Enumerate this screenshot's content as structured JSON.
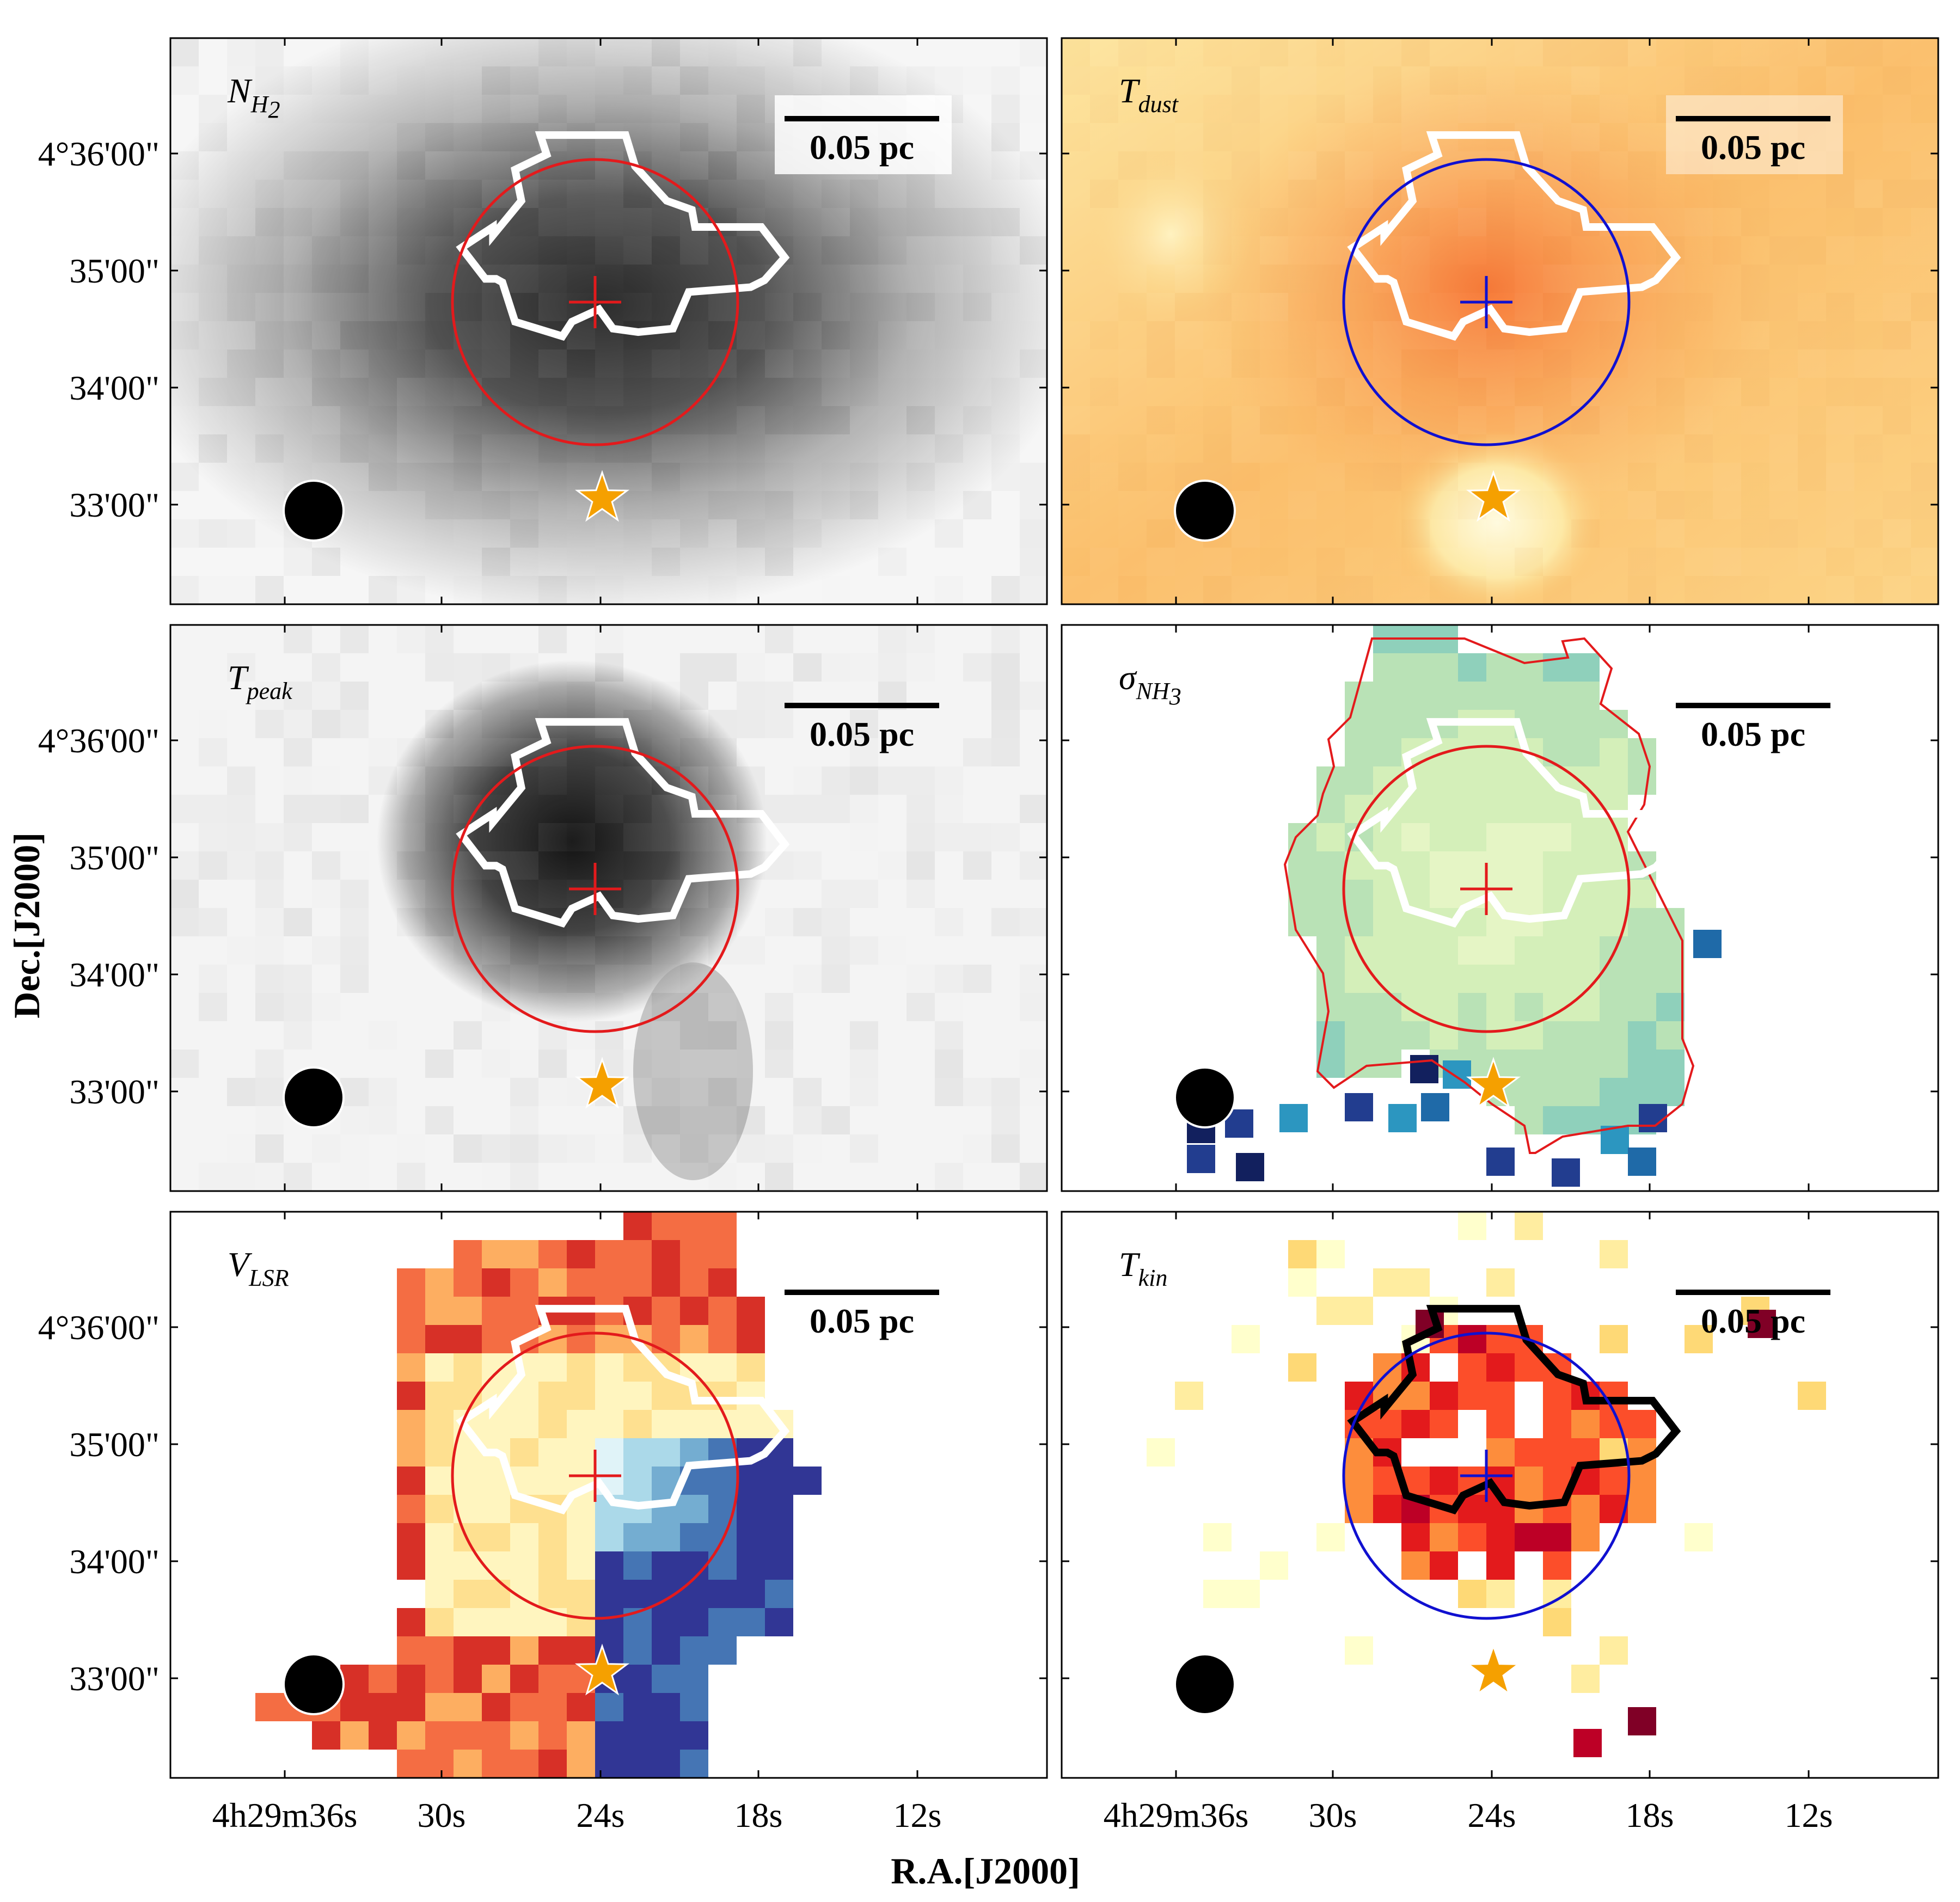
{
  "figure": {
    "xlabel": "R.A.[J2000]",
    "ylabel": "Dec.[J2000]",
    "x_tick_labels": [
      "4h29m36s",
      "30s",
      "24s",
      "18s",
      "12s"
    ],
    "y_tick_labels": [
      "4°36'00\"",
      "35'00\"",
      "34'00\"",
      "33'00\""
    ],
    "scalebar_label": "0.05 pc"
  },
  "chart_data": [
    {
      "type": "heatmap",
      "panel": "N_H2",
      "label_main": "N",
      "label_sub": "H",
      "label_sub2": "2",
      "colormap": "greys",
      "contour_color": "#ffffff",
      "marker_color": "#e31a1c",
      "star_color": "#f5a000",
      "xlim": [
        "4h29m40.5s",
        "4h29m7.5s"
      ],
      "ylim": [
        "33'00\" - 0.8'",
        "4°36'00\" + 1'"
      ],
      "grid": false
    },
    {
      "type": "heatmap",
      "panel": "T_dust",
      "label_main": "T",
      "label_sub": "dust",
      "colormap": "orange",
      "contour_color": "#ffffff",
      "marker_color": "#1010d0",
      "star_color": "#f5a000",
      "grid": false
    },
    {
      "type": "heatmap",
      "panel": "T_peak",
      "label_main": "T",
      "label_sub": "peak",
      "colormap": "greys",
      "contour_color": "#ffffff",
      "marker_color": "#e31a1c",
      "star_color": "#f5a000",
      "grid": false
    },
    {
      "type": "heatmap",
      "panel": "sigma_NH3",
      "label_main": "σ",
      "label_sub": "NH",
      "label_sub2": "3",
      "colormap": "YlGnBu",
      "contour_color": "#ffffff",
      "mask_contour_color": "#e31a1c",
      "marker_color": "#e31a1c",
      "star_color": "#f5a000",
      "grid": false
    },
    {
      "type": "heatmap",
      "panel": "V_LSR",
      "label_main": "V",
      "label_sub": "LSR",
      "colormap": "RdYlBu",
      "contour_color": "#ffffff",
      "marker_color": "#e31a1c",
      "star_color": "#f5a000",
      "grid": false
    },
    {
      "type": "heatmap",
      "panel": "T_kin",
      "label_main": "T",
      "label_sub": "kin",
      "colormap": "YlOrRd",
      "contour_color": "#000000",
      "marker_color": "#1010d0",
      "star_color": "#f5a000",
      "grid": false
    }
  ]
}
